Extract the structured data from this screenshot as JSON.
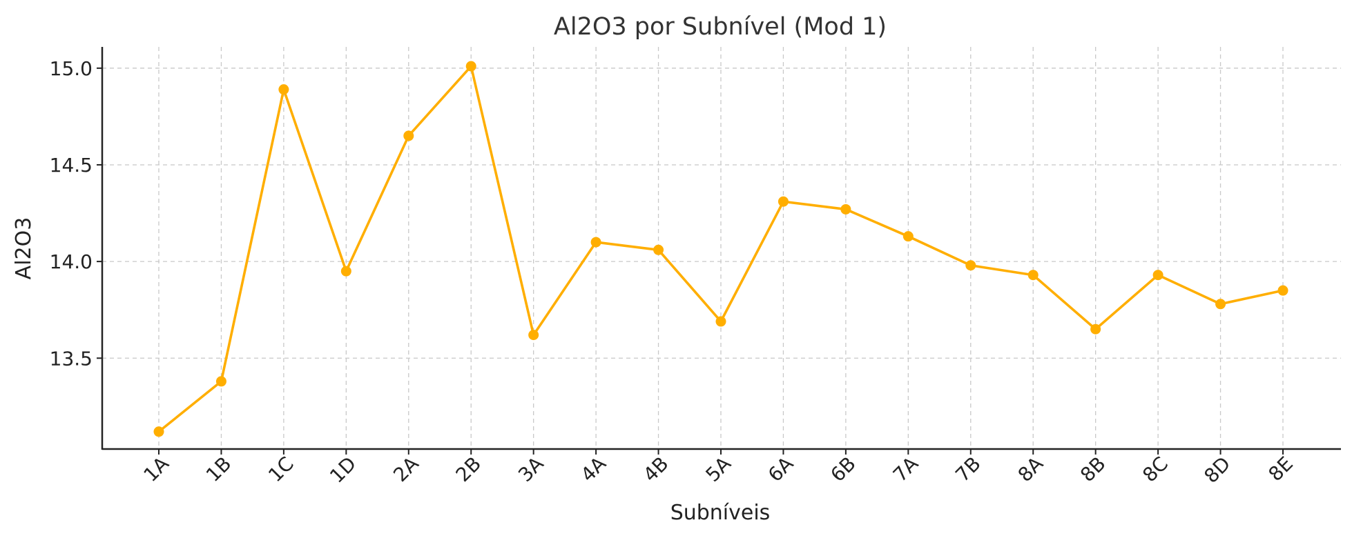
{
  "chart_data": {
    "type": "line",
    "title": "Al2O3 por Subnível (Mod 1)",
    "xlabel": "Subníveis",
    "ylabel": "Al2O3",
    "categories": [
      "1A",
      "1B",
      "1C",
      "1D",
      "2A",
      "2B",
      "3A",
      "4A",
      "4B",
      "5A",
      "6A",
      "6B",
      "7A",
      "7B",
      "8A",
      "8B",
      "8C",
      "8D",
      "8E"
    ],
    "series": [
      {
        "values": [
          13.12,
          13.38,
          14.89,
          13.95,
          14.65,
          15.01,
          13.62,
          14.1,
          14.06,
          13.69,
          14.31,
          14.27,
          14.13,
          13.98,
          13.93,
          13.65,
          13.93,
          13.78,
          13.85
        ]
      }
    ],
    "yticks": [
      13.5,
      14.0,
      14.5,
      15.0
    ],
    "ytick_labels": [
      "13.5",
      "14.0",
      "14.5",
      "15.0"
    ],
    "ylim": [
      13.03,
      15.11
    ],
    "grid": true,
    "color": "#FFAE00"
  }
}
